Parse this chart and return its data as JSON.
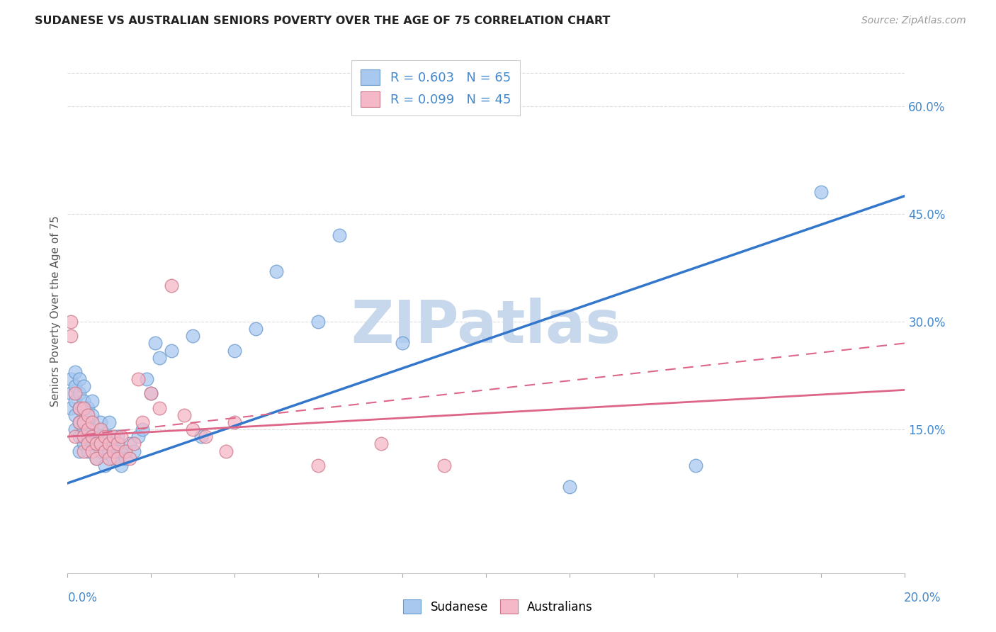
{
  "title": "SUDANESE VS AUSTRALIAN SENIORS POVERTY OVER THE AGE OF 75 CORRELATION CHART",
  "source": "Source: ZipAtlas.com",
  "ylabel": "Seniors Poverty Over the Age of 75",
  "yticks_right": [
    0.0,
    0.15,
    0.3,
    0.45,
    0.6
  ],
  "ytick_labels_right": [
    "",
    "15.0%",
    "30.0%",
    "45.0%",
    "60.0%"
  ],
  "xmin": 0.0,
  "xmax": 0.2,
  "ymin": -0.05,
  "ymax": 0.68,
  "watermark": "ZIPatlas",
  "color_sudanese_fill": "#a8c8f0",
  "color_sudanese_edge": "#6699cc",
  "color_australians_fill": "#f5b8c8",
  "color_australians_edge": "#cc7788",
  "color_trend_sudanese": "#3377cc",
  "color_trend_australians": "#dd6688",
  "color_title": "#222222",
  "color_source": "#999999",
  "color_axis_labels": "#4488cc",
  "color_watermark": "#c8d8ec",
  "color_grid": "#dddddd",
  "sudanese_x": [
    0.001,
    0.001,
    0.001,
    0.002,
    0.002,
    0.002,
    0.002,
    0.002,
    0.003,
    0.003,
    0.003,
    0.003,
    0.003,
    0.003,
    0.004,
    0.004,
    0.004,
    0.004,
    0.004,
    0.005,
    0.005,
    0.005,
    0.005,
    0.006,
    0.006,
    0.006,
    0.006,
    0.007,
    0.007,
    0.007,
    0.008,
    0.008,
    0.008,
    0.009,
    0.009,
    0.01,
    0.01,
    0.01,
    0.011,
    0.011,
    0.012,
    0.012,
    0.013,
    0.013,
    0.014,
    0.015,
    0.016,
    0.017,
    0.018,
    0.019,
    0.02,
    0.021,
    0.022,
    0.025,
    0.03,
    0.032,
    0.04,
    0.045,
    0.05,
    0.06,
    0.065,
    0.08,
    0.12,
    0.15,
    0.18
  ],
  "sudanese_y": [
    0.18,
    0.2,
    0.22,
    0.15,
    0.17,
    0.19,
    0.21,
    0.23,
    0.12,
    0.14,
    0.16,
    0.18,
    0.2,
    0.22,
    0.13,
    0.15,
    0.17,
    0.19,
    0.21,
    0.12,
    0.14,
    0.16,
    0.18,
    0.13,
    0.15,
    0.17,
    0.19,
    0.11,
    0.13,
    0.15,
    0.12,
    0.14,
    0.16,
    0.1,
    0.12,
    0.12,
    0.14,
    0.16,
    0.11,
    0.13,
    0.12,
    0.14,
    0.1,
    0.12,
    0.11,
    0.13,
    0.12,
    0.14,
    0.15,
    0.22,
    0.2,
    0.27,
    0.25,
    0.26,
    0.28,
    0.14,
    0.26,
    0.29,
    0.37,
    0.3,
    0.42,
    0.27,
    0.07,
    0.1,
    0.48
  ],
  "australians_x": [
    0.001,
    0.001,
    0.002,
    0.002,
    0.003,
    0.003,
    0.004,
    0.004,
    0.004,
    0.004,
    0.005,
    0.005,
    0.005,
    0.006,
    0.006,
    0.006,
    0.007,
    0.007,
    0.008,
    0.008,
    0.009,
    0.009,
    0.01,
    0.01,
    0.011,
    0.011,
    0.012,
    0.012,
    0.013,
    0.014,
    0.015,
    0.016,
    0.017,
    0.018,
    0.02,
    0.022,
    0.025,
    0.028,
    0.03,
    0.033,
    0.038,
    0.04,
    0.06,
    0.075,
    0.09
  ],
  "australians_y": [
    0.28,
    0.3,
    0.14,
    0.2,
    0.16,
    0.18,
    0.12,
    0.14,
    0.16,
    0.18,
    0.13,
    0.15,
    0.17,
    0.12,
    0.14,
    0.16,
    0.11,
    0.13,
    0.13,
    0.15,
    0.12,
    0.14,
    0.11,
    0.13,
    0.12,
    0.14,
    0.11,
    0.13,
    0.14,
    0.12,
    0.11,
    0.13,
    0.22,
    0.16,
    0.2,
    0.18,
    0.35,
    0.17,
    0.15,
    0.14,
    0.12,
    0.16,
    0.1,
    0.13,
    0.1
  ],
  "trend_s_x0": 0.0,
  "trend_s_y0": 0.075,
  "trend_s_x1": 0.2,
  "trend_s_y1": 0.475,
  "trend_a_x0": 0.0,
  "trend_a_y0": 0.14,
  "trend_a_x1": 0.2,
  "trend_a_y1": 0.205,
  "trend_a_dash_x0": 0.0,
  "trend_a_dash_y0": 0.14,
  "trend_a_dash_x1": 0.2,
  "trend_a_dash_y1": 0.27
}
